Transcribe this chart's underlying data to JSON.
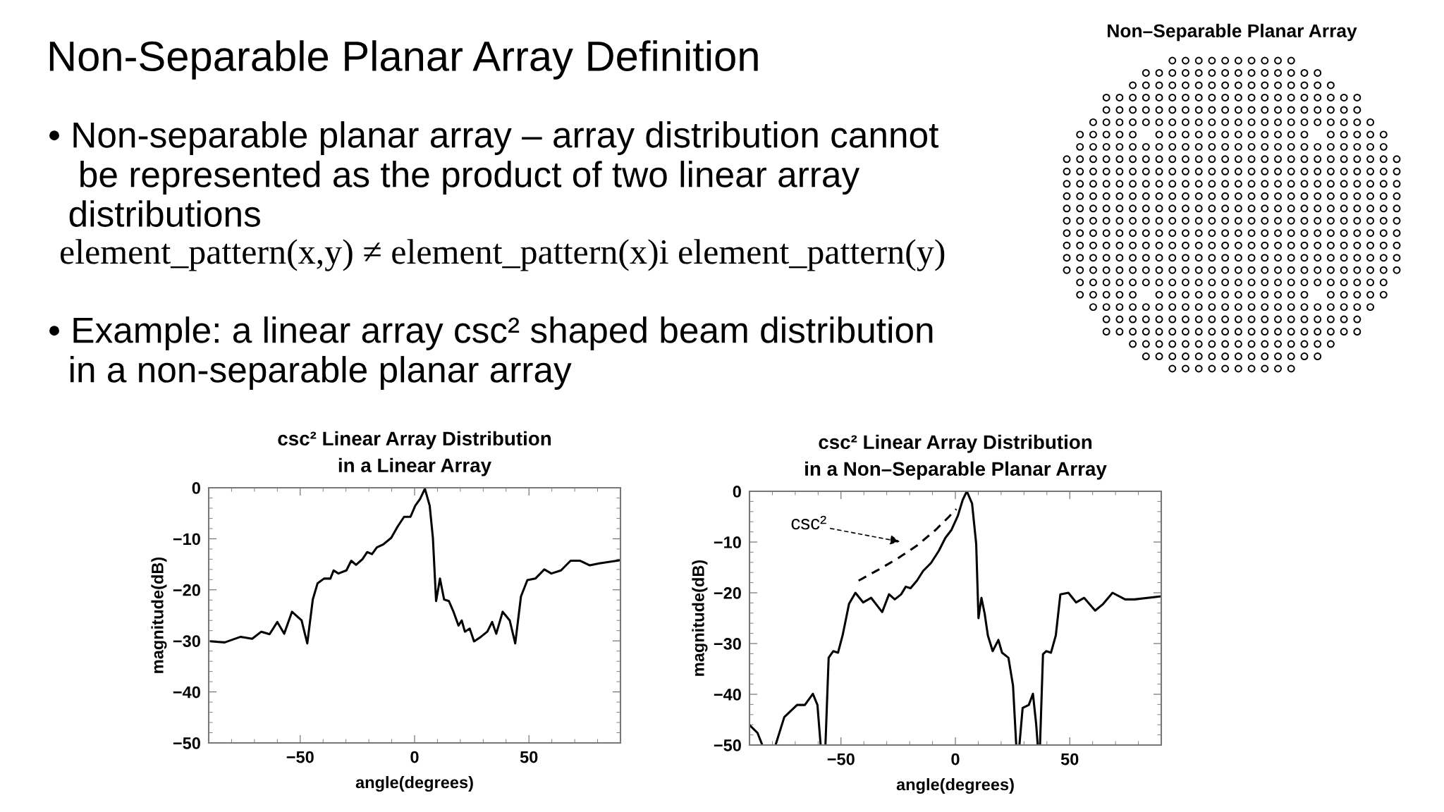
{
  "chart_data": [
    {
      "type": "other",
      "title": "Non-Separable Planar Array Definition",
      "annotations": [
        "• Non-separable planar array – array distribution cannot\n   be represented as the product of two linear array\n  distributions",
        "element_pattern(x,y) ≠ element_pattern(x)i element_pattern(y)",
        "• Example: a linear array csc² shaped beam distribution\n  in a non-separable planar array"
      ]
    },
    {
      "type": "other",
      "title": "Non–Separable Planar Array"
    },
    {
      "type": "line",
      "title": "csc² Linear Array Distribution\nin a Linear Array",
      "xlabel": "angle(degrees)",
      "ylabel": "magnitude(dB)",
      "xlim": [
        -90,
        90
      ],
      "ylim": [
        -50,
        0
      ],
      "xticks": [
        -50,
        0,
        50
      ],
      "yticks": [
        0,
        -10,
        -20,
        -30,
        -40,
        -50
      ],
      "series": [
        {
          "color": "#000000",
          "x": [
            -89,
            -83,
            -76,
            -71,
            -67,
            -63.4,
            -60,
            -57,
            -53.6,
            -49.4,
            -46.9,
            -44.5,
            -42.4,
            -39.6,
            -36.8,
            -35.4,
            -33.3,
            -29.8,
            -27.7,
            -25.6,
            -22.8,
            -20.7,
            -18.6,
            -16.5,
            -13.7,
            -10.2,
            -7.4,
            -4.6,
            -1.8,
            0.3,
            2.4,
            4.5,
            6.6,
            8,
            9.4,
            11.1,
            12.9,
            15,
            17.1,
            19.2,
            20.6,
            22,
            24.1,
            26,
            29,
            31.8,
            33.9,
            35.7,
            38.5,
            41.6,
            44,
            46.5,
            49.3,
            52.8,
            56.7,
            59.8,
            64,
            68.2,
            72.4,
            76.6,
            80.8,
            90
          ],
          "values": [
            -30.1,
            -30.3,
            -29.2,
            -29.6,
            -28.2,
            -28.7,
            -26.3,
            -28.6,
            -24.3,
            -26,
            -30.5,
            -21.9,
            -18.7,
            -17.8,
            -17.8,
            -16.2,
            -16.8,
            -16.2,
            -14.3,
            -15.1,
            -14,
            -12.6,
            -13,
            -11.7,
            -11.1,
            -9.8,
            -7.6,
            -5.7,
            -5.7,
            -3.5,
            -2.2,
            -0.2,
            -3.5,
            -9.8,
            -22.2,
            -17.8,
            -21.9,
            -22.2,
            -24.4,
            -27,
            -26,
            -28.2,
            -27.6,
            -30.1,
            -29.2,
            -28.2,
            -26.3,
            -28.6,
            -24.3,
            -26,
            -30.5,
            -21.3,
            -18.1,
            -17.8,
            -16,
            -16.8,
            -16.2,
            -14.3,
            -14.3,
            -15.2,
            -14.8,
            -14.2
          ]
        }
      ]
    },
    {
      "type": "line",
      "title": "csc² Linear Array Distribution\nin a Non–Separable Planar Array",
      "xlabel": "angle(degrees)",
      "ylabel": "magnitude(dB)",
      "xlim": [
        -90,
        90
      ],
      "ylim": [
        -50,
        0
      ],
      "xticks": [
        -50,
        0,
        50
      ],
      "yticks": [
        0,
        -10,
        -20,
        -30,
        -40,
        -50
      ],
      "annotations": [
        "csc²"
      ],
      "series": [
        {
          "color": "#000000",
          "x": [
            -89.9,
            -86.5,
            -84.4,
            -81,
            -78.6,
            -74.8,
            -69.2,
            -65.8,
            -62.3,
            -60.3,
            -58.9,
            -57.8,
            -56.8,
            -55.4,
            -53.4,
            -51.3,
            -49.3,
            -46.5,
            -43.7,
            -40.3,
            -36.8,
            -32,
            -29,
            -26.5,
            -23.7,
            -21.7,
            -19.6,
            -16.8,
            -14.1,
            -10.6,
            -7.2,
            -4.4,
            -1.7,
            1.1,
            3.2,
            5,
            7.3,
            9.1,
            10.1,
            11.4,
            12.8,
            14.2,
            16.3,
            18.8,
            20.4,
            23.2,
            25.2,
            26.6,
            27.3,
            28,
            29.4,
            32.1,
            33.9,
            35.3,
            36,
            36.5,
            37,
            38.3,
            39.7,
            41.8,
            43.9,
            45.9,
            49.4,
            52.8,
            56.3,
            61.1,
            64.6,
            68.7,
            74.2,
            78.3,
            90
          ],
          "values": [
            -46.1,
            -47.6,
            -50,
            null,
            -50,
            -44.5,
            -42.1,
            -42.1,
            -39.9,
            -42.1,
            -50,
            null,
            -50,
            -32.8,
            -31.5,
            -31.8,
            -28.4,
            -22.2,
            -20,
            -21.9,
            -21,
            -23.8,
            -20.3,
            -21.3,
            -20.3,
            -18.8,
            -19.1,
            -17.6,
            -15.7,
            -14.1,
            -11.7,
            -9.2,
            -7.6,
            -4.8,
            -1.7,
            0,
            -2.4,
            -10.4,
            -25,
            -21,
            -24.1,
            -28.4,
            -31.5,
            -29.3,
            -31.8,
            -32.8,
            -38.3,
            -50,
            null,
            -50,
            -42.7,
            -42.1,
            -39.9,
            -45.8,
            -50,
            null,
            -50,
            -32.1,
            -31.5,
            -31.8,
            -28.4,
            -20.3,
            -20,
            -21.9,
            -21,
            -23.5,
            -22.2,
            -20,
            -21.3,
            -21.3,
            -20.7
          ]
        },
        {
          "color": "#000000",
          "type": "line",
          "line_style": "dashed",
          "x": [
            -42.3,
            -33.4,
            -25.1,
            -16.8,
            -8.6,
            -3,
            0.4
          ],
          "values": [
            -17.6,
            -15.4,
            -13.2,
            -10.7,
            -7.6,
            -5.1,
            -3.5
          ]
        }
      ]
    }
  ]
}
